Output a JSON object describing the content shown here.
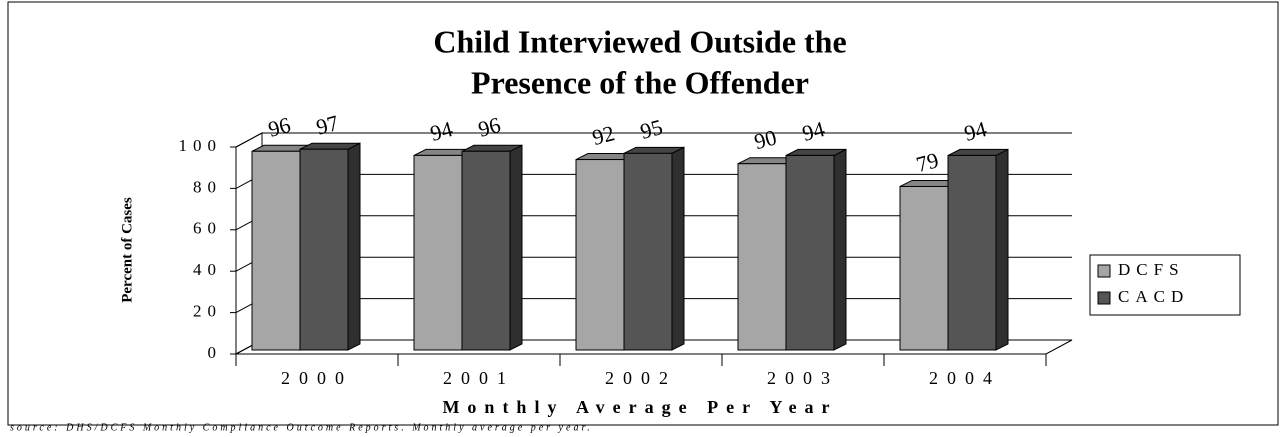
{
  "chart_data": {
    "type": "bar3d",
    "title": [
      "Child Interviewed Outside the",
      "Presence of the Offender"
    ],
    "y_label": "Percent of Cases",
    "x_label": "Monthly Average Per Year",
    "source": "source: DHS/DCFS Monthly Compliance Outcome Reports. Monthly average per year.",
    "categories": [
      "2000",
      "2001",
      "2002",
      "2003",
      "2004"
    ],
    "series": [
      {
        "name": "DCFS",
        "color": "#a6a6a6",
        "values": [
          96,
          94,
          92,
          90,
          79
        ]
      },
      {
        "name": "CACD",
        "color": "#555555",
        "values": [
          97,
          96,
          95,
          94,
          94
        ]
      }
    ],
    "ylim": [
      0,
      100
    ],
    "yticks": [
      0,
      20,
      40,
      60,
      80,
      100
    ],
    "grid": true,
    "legend": "right"
  }
}
